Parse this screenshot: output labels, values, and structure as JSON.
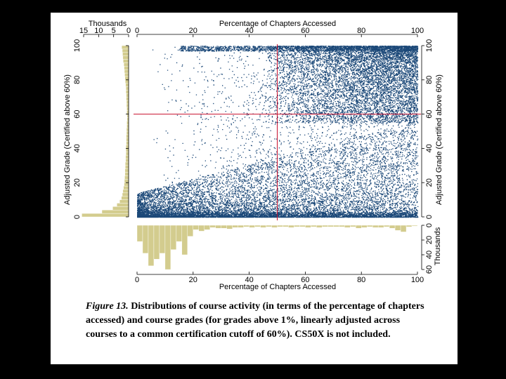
{
  "chart_data": {
    "type": "scatter",
    "title": "",
    "top_axis": {
      "label": "Percentage of Chapters Accessed",
      "ticks": [
        0,
        20,
        40,
        60,
        80,
        100
      ],
      "range": [
        0,
        100
      ]
    },
    "bottom_axis": {
      "label": "Percentage of Chapters Accessed",
      "ticks": [
        0,
        20,
        40,
        60,
        80,
        100
      ],
      "range": [
        0,
        100
      ]
    },
    "left_axis": {
      "label": "Adjusted Grade (Certified above 60%)",
      "ticks": [
        0,
        20,
        40,
        60,
        80,
        100
      ],
      "range": [
        0,
        100
      ]
    },
    "right_axis": {
      "label": "Adjusted Grade (Certified above 60%)",
      "ticks": [
        0,
        20,
        40,
        60,
        80,
        100
      ],
      "range": [
        0,
        100
      ]
    },
    "reference_lines": {
      "x": 50,
      "y": 60,
      "color": "#c8102e"
    },
    "point_color": "#1b4878",
    "hist_color": "#d3cc8e",
    "grade_histogram": {
      "axis_label": "Thousands",
      "ticks": [
        15,
        10,
        5,
        0
      ],
      "range": [
        0,
        15
      ],
      "bin_width": 2,
      "bin_starts": [
        0,
        2,
        4,
        6,
        8,
        10,
        12,
        14,
        16,
        18,
        20,
        22,
        24,
        26,
        28,
        30,
        32,
        34,
        36,
        38,
        40,
        42,
        44,
        46,
        48,
        50,
        52,
        54,
        56,
        58,
        60,
        62,
        64,
        66,
        68,
        70,
        72,
        74,
        76,
        78,
        80,
        82,
        84,
        86,
        88,
        90,
        92,
        94,
        96,
        98
      ],
      "counts": [
        15.6,
        8.9,
        5.3,
        3.9,
        3.0,
        2.4,
        2.1,
        1.9,
        1.7,
        1.5,
        1.4,
        1.3,
        1.2,
        1.2,
        1.1,
        1.1,
        1.0,
        1.0,
        0.9,
        0.9,
        0.9,
        0.8,
        0.8,
        0.8,
        0.7,
        0.7,
        0.6,
        0.6,
        0.5,
        0.5,
        0.6,
        0.6,
        0.7,
        0.7,
        0.8,
        0.8,
        0.9,
        0.9,
        1.0,
        1.1,
        1.2,
        1.3,
        1.4,
        1.5,
        1.6,
        1.8,
        1.9,
        2.0,
        2.1,
        2.3
      ]
    },
    "chapters_histogram": {
      "axis_label": "Thousands",
      "ticks": [
        0,
        20,
        40,
        60
      ],
      "range": [
        0,
        60
      ],
      "bin_width": 2,
      "bin_starts": [
        0,
        2,
        4,
        6,
        8,
        10,
        12,
        14,
        16,
        18,
        20,
        22,
        24,
        26,
        28,
        30,
        32,
        34,
        36,
        38,
        40,
        42,
        44,
        46,
        48,
        50,
        52,
        54,
        56,
        58,
        60,
        62,
        64,
        66,
        68,
        70,
        72,
        74,
        76,
        78,
        80,
        82,
        84,
        86,
        88,
        90,
        92,
        94,
        96,
        98
      ],
      "counts": [
        22,
        38,
        55,
        46,
        38,
        60,
        33,
        22,
        40,
        15,
        6,
        8,
        6,
        3,
        4,
        4,
        5,
        3,
        3,
        2,
        3,
        2,
        3,
        2,
        3,
        2,
        2,
        3,
        2,
        2,
        3,
        2,
        3,
        2,
        2,
        2,
        2,
        3,
        2,
        4,
        3,
        2,
        3,
        3,
        2,
        4,
        7,
        9,
        2,
        1
      ]
    }
  },
  "caption": {
    "label": "Figure 13.",
    "text": " Distributions of course activity (in terms of the percentage of chapters accessed) and course grades (for grades above 1%, linearly adjusted across courses to a common certification cutoff of 60%).  CS50X is not included."
  }
}
